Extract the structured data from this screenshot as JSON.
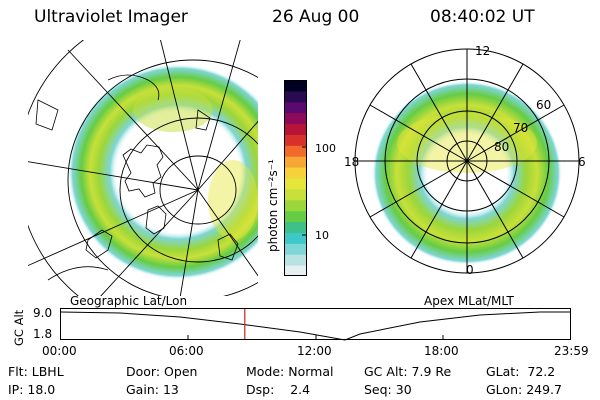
{
  "header": {
    "instrument": "Ultraviolet Imager",
    "date": "26 Aug 00",
    "time": "08:40:02 UT"
  },
  "left_panel": {
    "caption": "Geographic Lat/Lon"
  },
  "colorbar": {
    "unit_label": "photon cm⁻²s⁻¹",
    "ticks": [
      {
        "label": "100",
        "value": 100
      },
      {
        "label": "10",
        "value": 10
      }
    ],
    "colors": [
      "#e6f0f0",
      "#b9e2e2",
      "#7ed6d6",
      "#3dc9c9",
      "#3fbf8a",
      "#66cc44",
      "#9bd63a",
      "#c8e03a",
      "#e6e63a",
      "#f5d23a",
      "#f7a735",
      "#f06a2c",
      "#d8302b",
      "#b71438",
      "#8d0a5a",
      "#5a0a6e",
      "#2a0a50",
      "#000022"
    ]
  },
  "right_panel": {
    "caption": "Apex MLat/MLT",
    "lat_labels": [
      "80",
      "70",
      "60"
    ],
    "mlt_labels": {
      "top": "12",
      "left": "18",
      "right": "6",
      "bottom": "0"
    }
  },
  "timeline": {
    "ylabel": "GC Alt",
    "ymax_label": "9.0",
    "ymin_label": "1.8",
    "xticks": [
      "00:00",
      "06:00",
      "12:00",
      "18:00",
      "23:59"
    ],
    "current_time_hours": 8.667
  },
  "status": {
    "flt": {
      "label": "Flt:",
      "value": "LBHL"
    },
    "ip": {
      "label": "IP:",
      "value": "18.0"
    },
    "door": {
      "label": "Door:",
      "value": "Open"
    },
    "gain": {
      "label": "Gain:",
      "value": "13"
    },
    "mode": {
      "label": "Mode:",
      "value": "Normal"
    },
    "dsp": {
      "label": "Dsp:",
      "value": "2.4"
    },
    "gcalt": {
      "label": "GC Alt:",
      "value": "7.9 Re"
    },
    "seq": {
      "label": "Seq:",
      "value": "30"
    },
    "glat": {
      "label": "GLat:",
      "value": "72.2"
    },
    "glon": {
      "label": "GLon:",
      "value": "249.7"
    }
  }
}
